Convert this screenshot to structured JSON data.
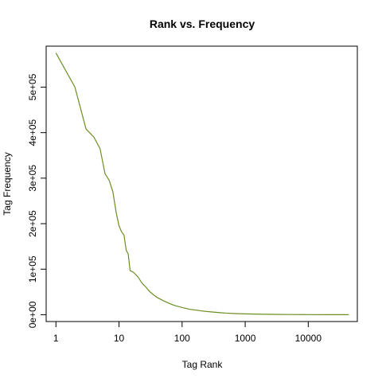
{
  "chart_data": {
    "type": "line",
    "title": "Rank vs. Frequency",
    "xlabel": "Tag Rank",
    "ylabel": "Tag Frequency",
    "x_scale": "log",
    "xlim": [
      0.7,
      60000
    ],
    "ylim": [
      -15000,
      590000
    ],
    "x_ticks": [
      {
        "value": 1,
        "label": "1"
      },
      {
        "value": 10,
        "label": "10"
      },
      {
        "value": 100,
        "label": "100"
      },
      {
        "value": 1000,
        "label": "1000"
      },
      {
        "value": 10000,
        "label": "10000"
      }
    ],
    "y_ticks": [
      {
        "value": 0,
        "label": "0e+00"
      },
      {
        "value": 100000,
        "label": "1e+05"
      },
      {
        "value": 200000,
        "label": "2e+05"
      },
      {
        "value": 300000,
        "label": "3e+05"
      },
      {
        "value": 400000,
        "label": "4e+05"
      },
      {
        "value": 500000,
        "label": "5e+05"
      }
    ],
    "grid": false,
    "line_color": "#6b8e23",
    "series": [
      {
        "name": "",
        "x": [
          1,
          2,
          3,
          4,
          5,
          6,
          7,
          8,
          9,
          10,
          11,
          12,
          13,
          14,
          15,
          17,
          20,
          23,
          27,
          30,
          35,
          40,
          50,
          60,
          70,
          80,
          100,
          130,
          170,
          200,
          250,
          300,
          400,
          500,
          700,
          1000,
          2000,
          3000,
          5000,
          10000,
          20000,
          44000
        ],
        "y": [
          575000,
          500000,
          408000,
          390000,
          365000,
          310000,
          295000,
          270000,
          225000,
          195000,
          182000,
          175000,
          142000,
          133000,
          97000,
          93000,
          83000,
          70000,
          60000,
          52000,
          44000,
          38000,
          31000,
          26000,
          22000,
          19500,
          16000,
          12000,
          10000,
          8500,
          7000,
          6000,
          4500,
          3500,
          2500,
          1800,
          1000,
          700,
          400,
          200,
          100,
          50
        ]
      }
    ]
  }
}
